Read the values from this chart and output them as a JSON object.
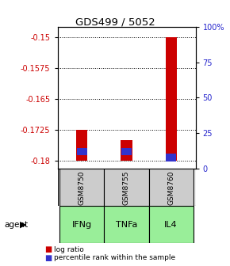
{
  "title": "GDS499 / 5052",
  "samples": [
    "GSM8750",
    "GSM8755",
    "GSM8760"
  ],
  "agents": [
    "IFNg",
    "TNFa",
    "IL4"
  ],
  "log_ratios": [
    -0.1725,
    -0.175,
    -0.15
  ],
  "log_ratio_base": -0.18,
  "percentile_ranks": [
    12,
    12,
    8
  ],
  "ylim_left": [
    -0.182,
    -0.1475
  ],
  "ylim_right": [
    0,
    100
  ],
  "yticks_left": [
    -0.18,
    -0.1725,
    -0.165,
    -0.1575,
    -0.15
  ],
  "ytick_labels_left": [
    "-0.18",
    "-0.1725",
    "-0.165",
    "-0.1575",
    "-0.15"
  ],
  "yticks_right": [
    0,
    25,
    50,
    75,
    100
  ],
  "ytick_labels_right": [
    "0",
    "25",
    "50",
    "75",
    "100%"
  ],
  "bar_color_red": "#cc0000",
  "bar_color_blue": "#3333cc",
  "sample_bg": "#cccccc",
  "agent_bg_color": "#99ee99",
  "left_color": "#cc0000",
  "right_color": "#2222cc",
  "bar_width": 0.25
}
